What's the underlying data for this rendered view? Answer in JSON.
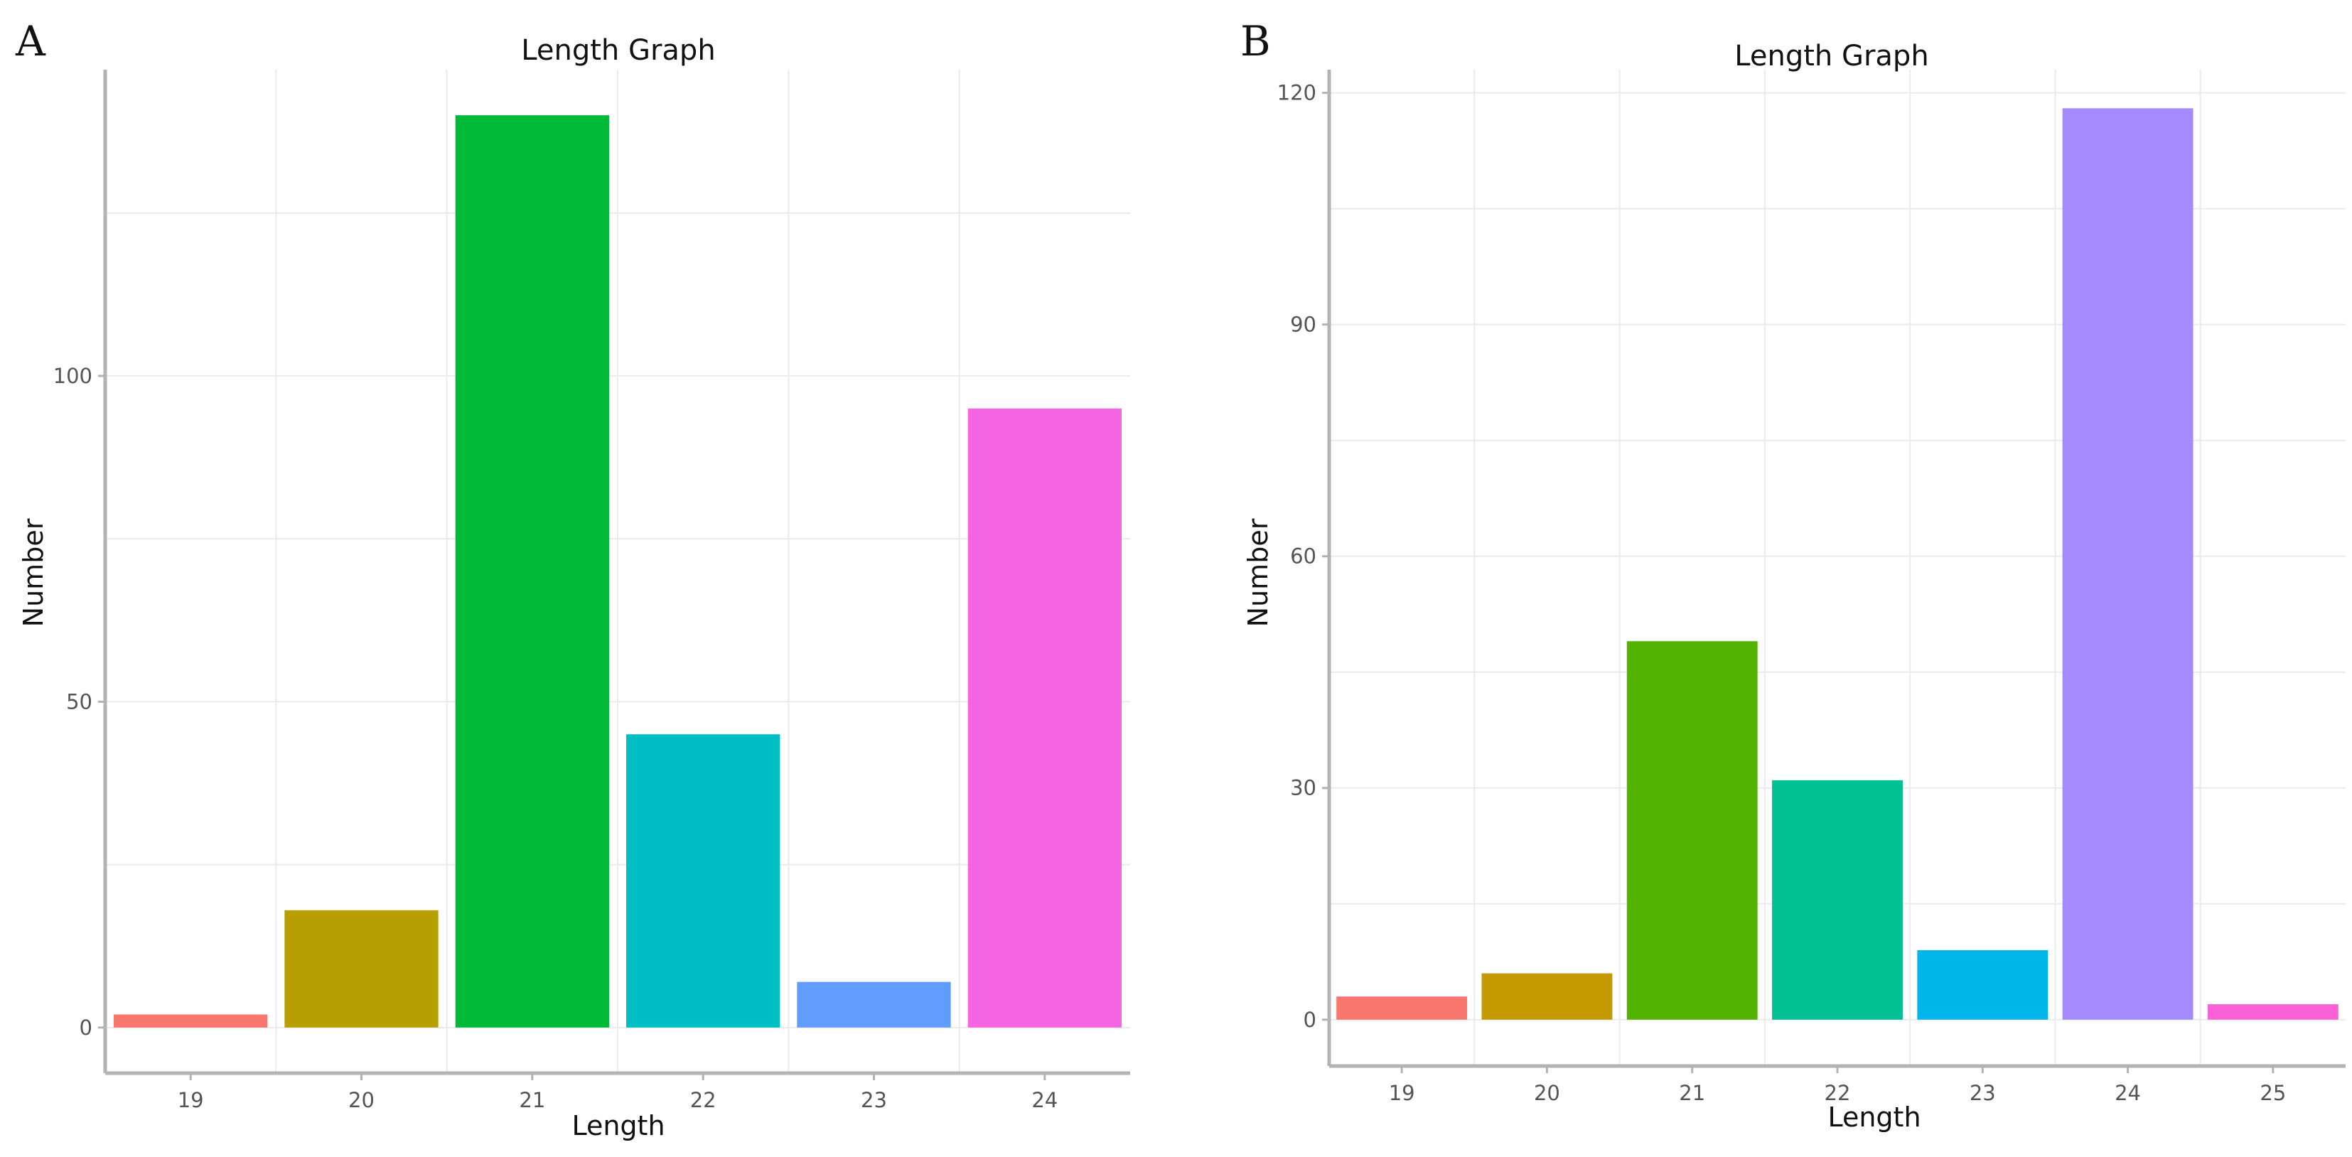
{
  "chart_data": [
    {
      "panel_label": "A",
      "type": "bar",
      "title": "Length Graph",
      "xlabel": "Length",
      "ylabel": "Number",
      "categories": [
        "19",
        "20",
        "21",
        "22",
        "23",
        "24"
      ],
      "values": [
        2,
        18,
        140,
        45,
        7,
        95
      ],
      "colors": [
        "#F8766D",
        "#B79F00",
        "#00BA38",
        "#00BFC4",
        "#619CFF",
        "#F564E3"
      ],
      "ylim": [
        -7,
        147
      ],
      "yticks": [
        0,
        50,
        100
      ],
      "ytick_labels": [
        "0",
        "50",
        "100"
      ],
      "grid": true,
      "legend": "none"
    },
    {
      "panel_label": "B",
      "type": "bar",
      "title": "Length Graph",
      "xlabel": "Length",
      "ylabel": "Number",
      "categories": [
        "19",
        "20",
        "21",
        "22",
        "23",
        "24",
        "25"
      ],
      "values": [
        3,
        6,
        49,
        31,
        9,
        118,
        2
      ],
      "colors": [
        "#F8766D",
        "#C49A00",
        "#53B400",
        "#00C094",
        "#00B6EB",
        "#A58AFF",
        "#FB61D7"
      ],
      "ylim": [
        -6,
        123
      ],
      "yticks": [
        0,
        30,
        60,
        90,
        120
      ],
      "ytick_labels": [
        "0",
        "30",
        "60",
        "90",
        "120"
      ],
      "grid": true,
      "legend": "none"
    }
  ]
}
